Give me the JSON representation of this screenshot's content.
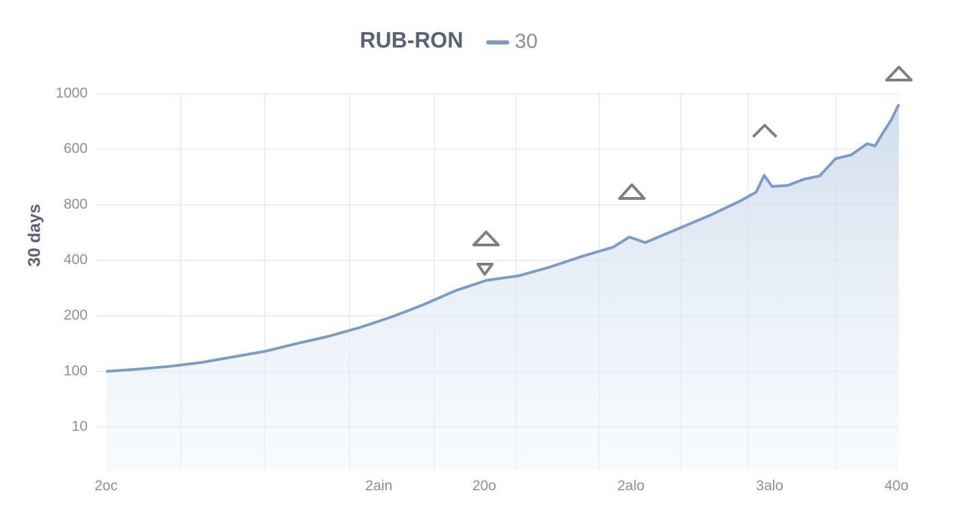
{
  "chart_data": {
    "type": "area",
    "title": "RUB-RON",
    "y_label": "30 days",
    "series": [
      {
        "name": "30",
        "color": "#7b9cc4",
        "x": [
          0,
          4,
          8,
          12,
          16,
          20,
          24,
          28,
          32,
          36,
          40,
          44,
          48,
          52,
          56,
          60,
          64,
          66,
          68,
          72,
          76,
          80,
          82,
          83,
          84,
          86,
          88,
          90,
          92,
          94,
          96,
          97,
          98,
          99,
          100
        ],
        "values": [
          1.0,
          1.04,
          1.09,
          1.16,
          1.26,
          1.36,
          1.5,
          1.63,
          1.79,
          1.98,
          2.2,
          2.45,
          2.64,
          2.72,
          2.88,
          3.07,
          3.24,
          3.42,
          3.32,
          3.56,
          3.8,
          4.07,
          4.23,
          4.53,
          4.33,
          4.35,
          4.46,
          4.52,
          4.83,
          4.9,
          5.1,
          5.06,
          5.3,
          5.52,
          5.81
        ]
      }
    ],
    "xlim": [
      0,
      100
    ],
    "xticks": [
      {
        "value": 0,
        "label": "2oc"
      },
      {
        "value": 34.4,
        "label": "2ain"
      },
      {
        "value": 47.7,
        "label": "20o"
      },
      {
        "value": 66.2,
        "label": "2alo"
      },
      {
        "value": 83.7,
        "label": "3alo"
      },
      {
        "value": 99.7,
        "label": "40o"
      }
    ],
    "xgrid": [
      9.4,
      20,
      30.7,
      41.4,
      51.7,
      62.2,
      72.5,
      81,
      92.1
    ],
    "ylim": [
      -0.79,
      6
    ],
    "yticks": [
      {
        "value": 6,
        "label": "1000"
      },
      {
        "value": 5,
        "label": "600"
      },
      {
        "value": 4,
        "label": "800"
      },
      {
        "value": 3,
        "label": "400"
      },
      {
        "value": 2,
        "label": "200"
      },
      {
        "value": 1,
        "label": "100"
      },
      {
        "value": 0,
        "label": "10"
      }
    ],
    "grid": true
  }
}
